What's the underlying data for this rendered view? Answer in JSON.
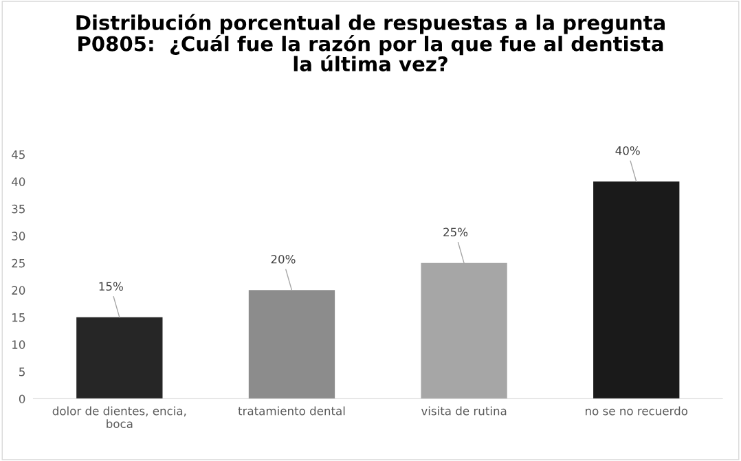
{
  "chart_data": {
    "type": "bar",
    "title": "Distribución porcentual de respuestas a la pregunta P0805:  ¿Cuál fue la razón por la que fue al dentista la última vez?",
    "categories": [
      "dolor de dientes, encia, boca",
      "tratamiento dental",
      "visita de rutina",
      "no se no recuerdo"
    ],
    "values": [
      15,
      20,
      25,
      40
    ],
    "colors": [
      "#262626",
      "#8c8c8c",
      "#a6a6a6",
      "#1a1a1a"
    ],
    "value_labels": [
      "15%",
      "20%",
      "25%",
      "40%"
    ],
    "ylim": [
      0,
      45
    ],
    "yticks": [
      0,
      5,
      10,
      15,
      20,
      25,
      30,
      35,
      40,
      45
    ],
    "grid": false,
    "legend": false
  }
}
